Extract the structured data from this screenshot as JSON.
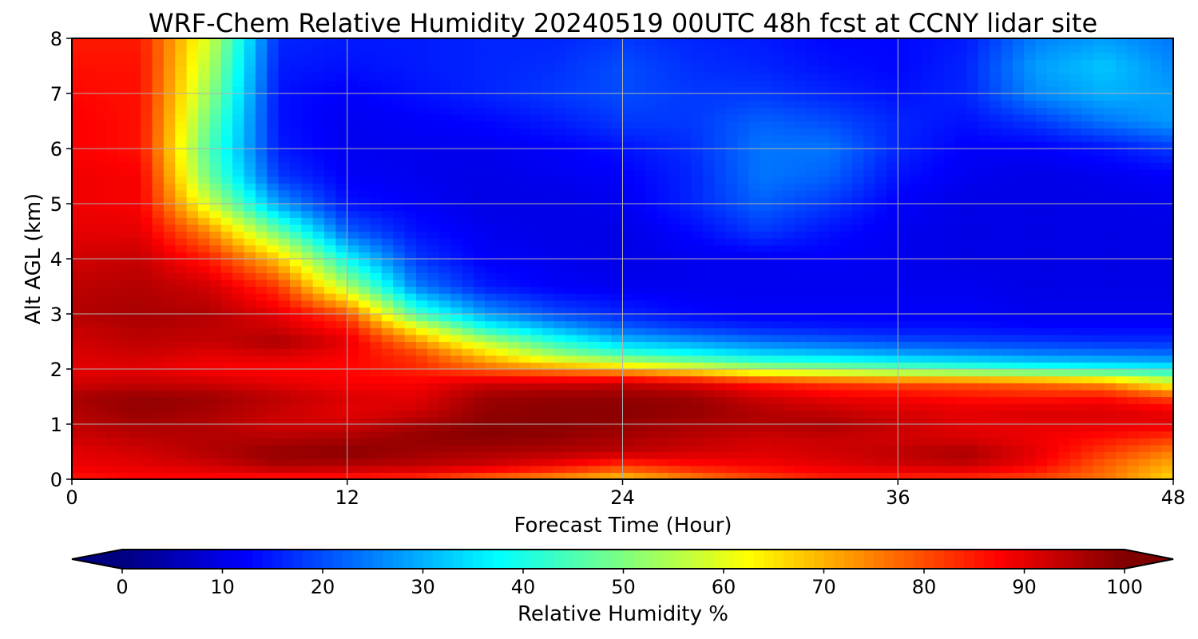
{
  "chart_data": {
    "type": "heatmap",
    "title": "WRF-Chem Relative Humidity 20240519 00UTC 48h fcst at CCNY lidar site",
    "xlabel": "Forecast Time (Hour)",
    "ylabel": "Alt AGL (km)",
    "xlim": [
      0,
      48
    ],
    "ylim": [
      0,
      8
    ],
    "xticks": [
      0,
      12,
      24,
      36,
      48
    ],
    "yticks": [
      0,
      1,
      2,
      3,
      4,
      5,
      6,
      7,
      8
    ],
    "grid": true,
    "colormap": "jet",
    "colorbar": {
      "label": "Relative Humidity %",
      "range": [
        0,
        100
      ],
      "ticks": [
        0,
        10,
        20,
        30,
        40,
        50,
        60,
        70,
        80,
        90,
        100
      ],
      "extend": "both",
      "orientation": "horizontal",
      "placement": "bottom"
    },
    "x": [
      0,
      3,
      6,
      9,
      12,
      15,
      18,
      21,
      24,
      27,
      30,
      33,
      36,
      39,
      42,
      45,
      48
    ],
    "y": [
      0,
      0.25,
      0.5,
      0.75,
      1,
      1.25,
      1.5,
      1.75,
      2,
      2.25,
      2.5,
      2.75,
      3,
      3.5,
      4,
      4.5,
      5,
      5.5,
      6,
      6.5,
      7,
      7.5,
      8
    ],
    "values": [
      [
        85,
        87,
        86,
        84,
        84,
        82,
        76,
        72,
        67,
        74,
        80,
        84,
        83,
        82,
        80,
        76,
        66
      ],
      [
        89,
        90,
        92,
        96,
        95,
        94,
        92,
        88,
        82,
        86,
        88,
        90,
        92,
        93,
        88,
        78,
        70
      ],
      [
        90,
        92,
        95,
        98,
        99,
        97,
        96,
        95,
        94,
        92,
        91,
        92,
        94,
        96,
        90,
        82,
        75
      ],
      [
        92,
        94,
        95,
        95,
        96,
        98,
        99,
        98,
        96,
        94,
        92,
        93,
        92,
        91,
        89,
        86,
        82
      ],
      [
        94,
        96,
        95,
        92,
        92,
        96,
        99,
        99,
        98,
        96,
        95,
        96,
        93,
        90,
        90,
        90,
        90
      ],
      [
        95,
        98,
        96,
        93,
        90,
        92,
        98,
        99,
        99,
        98,
        95,
        93,
        91,
        90,
        91,
        91,
        89
      ],
      [
        96,
        98,
        97,
        94,
        91,
        90,
        97,
        98,
        98,
        97,
        92,
        89,
        88,
        86,
        85,
        86,
        80
      ],
      [
        92,
        93,
        92,
        90,
        88,
        88,
        92,
        92,
        93,
        90,
        85,
        82,
        80,
        79,
        77,
        73,
        60
      ],
      [
        90,
        90,
        88,
        87,
        87,
        84,
        78,
        74,
        70,
        63,
        55,
        52,
        48,
        45,
        42,
        40,
        38
      ],
      [
        91,
        92,
        90,
        91,
        88,
        82,
        68,
        54,
        45,
        40,
        35,
        33,
        30,
        28,
        26,
        25,
        24
      ],
      [
        92,
        94,
        93,
        96,
        90,
        74,
        56,
        42,
        32,
        28,
        24,
        22,
        20,
        19,
        18,
        17,
        17
      ],
      [
        93,
        95,
        94,
        92,
        86,
        62,
        40,
        30,
        22,
        18,
        16,
        15,
        14,
        14,
        13,
        13,
        13
      ],
      [
        95,
        96,
        95,
        90,
        80,
        45,
        28,
        20,
        16,
        13,
        12,
        12,
        12,
        12,
        11,
        11,
        11
      ],
      [
        94,
        95,
        92,
        82,
        55,
        25,
        15,
        12,
        11,
        11,
        11,
        11,
        11,
        11,
        10,
        10,
        10
      ],
      [
        92,
        93,
        85,
        68,
        38,
        18,
        12,
        11,
        10,
        11,
        11,
        12,
        11,
        10,
        10,
        10,
        10
      ],
      [
        90,
        90,
        74,
        48,
        22,
        14,
        11,
        10,
        10,
        13,
        18,
        14,
        11,
        10,
        10,
        10,
        10
      ],
      [
        89,
        88,
        58,
        28,
        14,
        12,
        10,
        10,
        11,
        16,
        22,
        18,
        12,
        10,
        10,
        10,
        11
      ],
      [
        89,
        88,
        48,
        18,
        12,
        11,
        10,
        11,
        12,
        16,
        24,
        22,
        14,
        11,
        10,
        11,
        12
      ],
      [
        88,
        86,
        45,
        15,
        11,
        11,
        11,
        12,
        14,
        17,
        24,
        24,
        16,
        12,
        12,
        14,
        18
      ],
      [
        88,
        86,
        48,
        14,
        11,
        12,
        13,
        15,
        18,
        18,
        22,
        20,
        16,
        14,
        18,
        24,
        28
      ],
      [
        87,
        86,
        52,
        14,
        12,
        14,
        16,
        18,
        20,
        18,
        18,
        16,
        14,
        16,
        26,
        30,
        28
      ],
      [
        86,
        86,
        55,
        15,
        14,
        15,
        16,
        17,
        20,
        17,
        16,
        14,
        13,
        16,
        28,
        32,
        26
      ],
      [
        85,
        85,
        58,
        16,
        15,
        15,
        16,
        16,
        18,
        16,
        15,
        13,
        13,
        15,
        25,
        28,
        24
      ]
    ]
  }
}
